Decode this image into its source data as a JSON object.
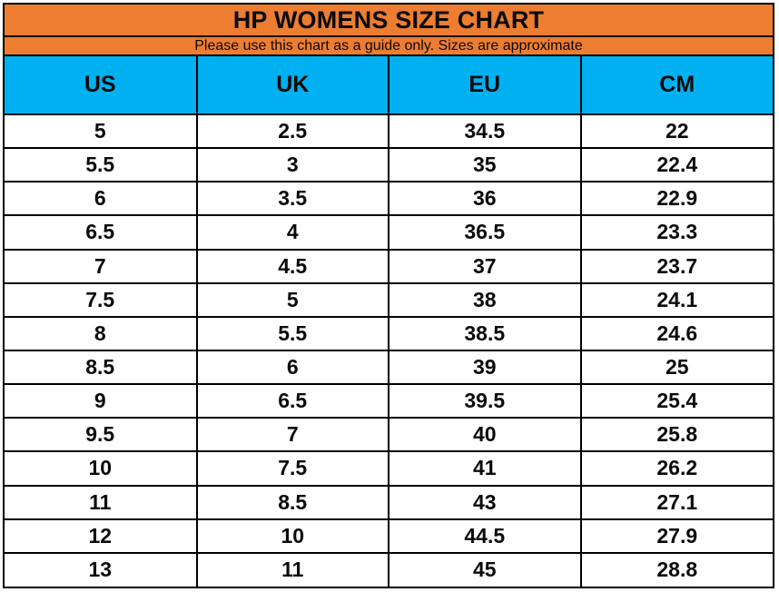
{
  "title": "HP WOMENS SIZE CHART",
  "subtitle": "Please use this chart as a guide only. Sizes are approximate",
  "colors": {
    "banner_orange": "#ED7D31",
    "header_blue": "#00B0F0",
    "grid_black": "#000000",
    "cell_white": "#FFFFFF",
    "text_black": "#0A0A0A"
  },
  "chart_data": {
    "type": "table",
    "title": "HP WOMENS SIZE CHART",
    "subtitle": "Please use this chart as a guide only. Sizes are approximate",
    "columns": [
      "US",
      "UK",
      "EU",
      "CM"
    ],
    "rows": [
      [
        "5",
        "2.5",
        "34.5",
        "22"
      ],
      [
        "5.5",
        "3",
        "35",
        "22.4"
      ],
      [
        "6",
        "3.5",
        "36",
        "22.9"
      ],
      [
        "6.5",
        "4",
        "36.5",
        "23.3"
      ],
      [
        "7",
        "4.5",
        "37",
        "23.7"
      ],
      [
        "7.5",
        "5",
        "38",
        "24.1"
      ],
      [
        "8",
        "5.5",
        "38.5",
        "24.6"
      ],
      [
        "8.5",
        "6",
        "39",
        "25"
      ],
      [
        "9",
        "6.5",
        "39.5",
        "25.4"
      ],
      [
        "9.5",
        "7",
        "40",
        "25.8"
      ],
      [
        "10",
        "7.5",
        "41",
        "26.2"
      ],
      [
        "11",
        "8.5",
        "43",
        "27.1"
      ],
      [
        "12",
        "10",
        "44.5",
        "27.9"
      ],
      [
        "13",
        "11",
        "45",
        "28.8"
      ]
    ],
    "layout": {
      "grid": true,
      "header_position": "top",
      "column_count": 4,
      "row_count": 14
    }
  }
}
